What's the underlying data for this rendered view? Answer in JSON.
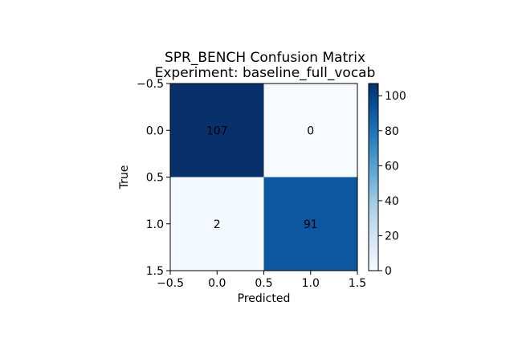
{
  "chart_data": {
    "type": "heatmap",
    "title_line1": "SPR_BENCH Confusion Matrix",
    "title_line2": "Experiment: baseline_full_vocab",
    "xlabel": "Predicted",
    "ylabel": "True",
    "values": [
      [
        107,
        0
      ],
      [
        2,
        91
      ]
    ],
    "xlim": [
      -0.5,
      1.5
    ],
    "ylim": [
      1.5,
      -0.5
    ],
    "xticks": [
      "−0.5",
      "0.0",
      "0.5",
      "1.0",
      "1.5"
    ],
    "yticks": [
      "−0.5",
      "0.0",
      "0.5",
      "1.0",
      "1.5"
    ],
    "colormap": "Blues",
    "colorbar": {
      "vmin": 0,
      "vmax": 107,
      "ticks": [
        0,
        20,
        40,
        60,
        80,
        100
      ]
    },
    "grid": false
  }
}
